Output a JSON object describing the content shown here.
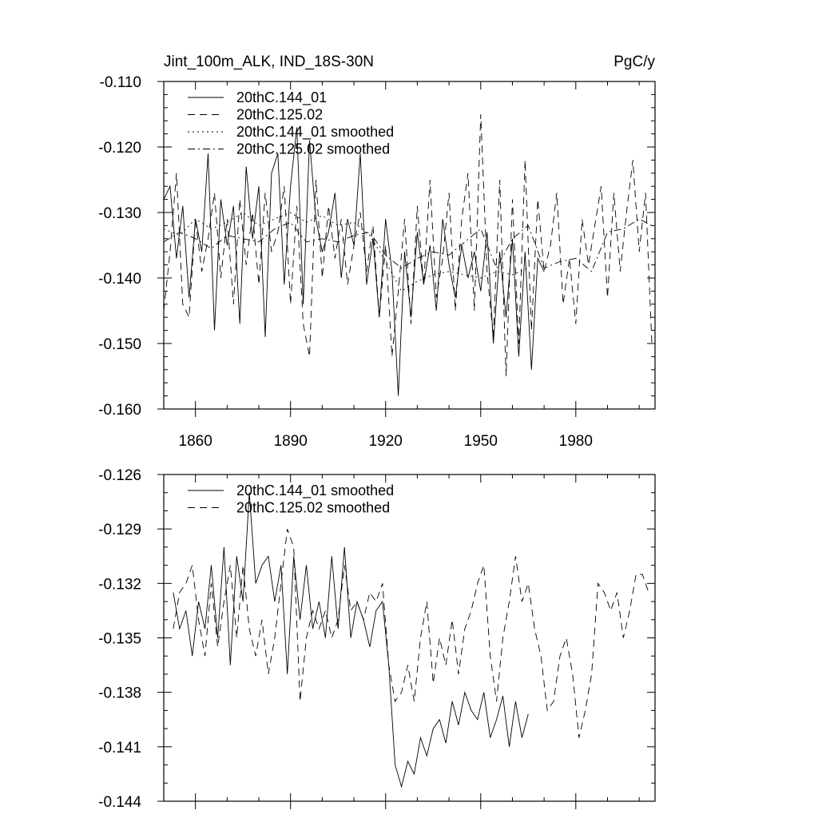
{
  "chart_data": [
    {
      "type": "line",
      "title": "Jint_100m_ALK, IND_18S-30N",
      "units": "PgC/y",
      "xlabel": "",
      "ylabel": "",
      "xlim": [
        1850,
        2005
      ],
      "ylim": [
        -0.16,
        -0.11
      ],
      "xticks": [
        1860,
        1890,
        1920,
        1950,
        1980
      ],
      "xtick_labels": [
        "1860",
        "1890",
        "1920",
        "1950",
        "1980"
      ],
      "yticks": [
        -0.11,
        -0.12,
        -0.13,
        -0.14,
        -0.15,
        -0.16
      ],
      "ytick_labels": [
        "-0.110",
        "-0.120",
        "-0.130",
        "-0.140",
        "-0.150",
        "-0.160"
      ],
      "legend_position": "top-left",
      "series": [
        {
          "name": "20thC.144_01",
          "style": "solid",
          "x": [
            1850,
            1852,
            1854,
            1856,
            1858,
            1860,
            1862,
            1864,
            1866,
            1868,
            1870,
            1872,
            1874,
            1876,
            1878,
            1880,
            1882,
            1884,
            1886,
            1888,
            1890,
            1892,
            1894,
            1896,
            1898,
            1900,
            1902,
            1904,
            1906,
            1908,
            1910,
            1912,
            1914,
            1916,
            1918,
            1920,
            1922,
            1924,
            1926,
            1928,
            1930,
            1932,
            1934,
            1936,
            1938,
            1940,
            1942,
            1944,
            1946,
            1948,
            1950,
            1952,
            1954,
            1956,
            1958,
            1960,
            1962,
            1964,
            1966,
            1968,
            1970
          ],
          "values": [
            -0.128,
            -0.126,
            -0.137,
            -0.129,
            -0.143,
            -0.131,
            -0.136,
            -0.121,
            -0.148,
            -0.128,
            -0.135,
            -0.129,
            -0.147,
            -0.123,
            -0.134,
            -0.126,
            -0.149,
            -0.124,
            -0.121,
            -0.141,
            -0.126,
            -0.117,
            -0.144,
            -0.119,
            -0.131,
            -0.136,
            -0.133,
            -0.127,
            -0.14,
            -0.131,
            -0.135,
            -0.121,
            -0.141,
            -0.134,
            -0.146,
            -0.131,
            -0.139,
            -0.158,
            -0.136,
            -0.146,
            -0.133,
            -0.141,
            -0.135,
            -0.145,
            -0.131,
            -0.138,
            -0.143,
            -0.135,
            -0.14,
            -0.136,
            -0.142,
            -0.133,
            -0.15,
            -0.136,
            -0.146,
            -0.134,
            -0.152,
            -0.136,
            -0.154,
            -0.137,
            -0.139
          ]
        },
        {
          "name": "20thC.125.02",
          "style": "dashed",
          "x": [
            1850,
            1852,
            1854,
            1856,
            1858,
            1860,
            1862,
            1864,
            1866,
            1868,
            1870,
            1872,
            1874,
            1876,
            1878,
            1880,
            1882,
            1884,
            1886,
            1888,
            1890,
            1892,
            1894,
            1896,
            1898,
            1900,
            1902,
            1904,
            1906,
            1908,
            1910,
            1912,
            1914,
            1916,
            1918,
            1920,
            1922,
            1924,
            1926,
            1928,
            1930,
            1932,
            1934,
            1936,
            1938,
            1940,
            1942,
            1944,
            1946,
            1948,
            1950,
            1952,
            1954,
            1956,
            1958,
            1960,
            1962,
            1964,
            1966,
            1968,
            1970,
            1972,
            1974,
            1976,
            1978,
            1980,
            1982,
            1984,
            1986,
            1988,
            1990,
            1992,
            1994,
            1996,
            1998,
            2000,
            2002,
            2004
          ],
          "values": [
            -0.145,
            -0.136,
            -0.124,
            -0.144,
            -0.146,
            -0.131,
            -0.139,
            -0.134,
            -0.127,
            -0.14,
            -0.131,
            -0.144,
            -0.128,
            -0.138,
            -0.13,
            -0.141,
            -0.127,
            -0.136,
            -0.133,
            -0.126,
            -0.144,
            -0.129,
            -0.147,
            -0.152,
            -0.125,
            -0.14,
            -0.129,
            -0.137,
            -0.131,
            -0.141,
            -0.135,
            -0.13,
            -0.139,
            -0.132,
            -0.146,
            -0.135,
            -0.152,
            -0.142,
            -0.131,
            -0.147,
            -0.129,
            -0.141,
            -0.125,
            -0.143,
            -0.137,
            -0.127,
            -0.145,
            -0.131,
            -0.124,
            -0.145,
            -0.115,
            -0.139,
            -0.149,
            -0.125,
            -0.155,
            -0.128,
            -0.15,
            -0.122,
            -0.148,
            -0.128,
            -0.139,
            -0.135,
            -0.127,
            -0.144,
            -0.137,
            -0.147,
            -0.131,
            -0.138,
            -0.132,
            -0.126,
            -0.143,
            -0.127,
            -0.139,
            -0.13,
            -0.122,
            -0.136,
            -0.127,
            -0.15
          ]
        },
        {
          "name": "20thC.144_01 smoothed",
          "style": "dotted",
          "x": [
            1850,
            1855,
            1860,
            1865,
            1870,
            1875,
            1880,
            1885,
            1890,
            1895,
            1900,
            1905,
            1910,
            1915,
            1920,
            1925,
            1930,
            1935,
            1940,
            1945,
            1950,
            1955,
            1960,
            1965
          ],
          "values": [
            -0.1325,
            -0.1335,
            -0.131,
            -0.1325,
            -0.1315,
            -0.13,
            -0.132,
            -0.131,
            -0.13,
            -0.1315,
            -0.1305,
            -0.132,
            -0.1315,
            -0.1335,
            -0.1375,
            -0.142,
            -0.1405,
            -0.1395,
            -0.139,
            -0.1395,
            -0.14,
            -0.139,
            -0.1395,
            -0.1385
          ]
        },
        {
          "name": "20thC.125.02 smoothed",
          "style": "dashdot",
          "x": [
            1850,
            1855,
            1860,
            1865,
            1870,
            1875,
            1880,
            1885,
            1890,
            1895,
            1900,
            1905,
            1910,
            1915,
            1920,
            1925,
            1930,
            1935,
            1940,
            1945,
            1950,
            1955,
            1960,
            1965,
            1970,
            1975,
            1980,
            1985,
            1990,
            1995,
            2000,
            2004
          ],
          "values": [
            -0.1345,
            -0.133,
            -0.134,
            -0.1355,
            -0.1335,
            -0.134,
            -0.1345,
            -0.1325,
            -0.1315,
            -0.1345,
            -0.134,
            -0.1345,
            -0.1335,
            -0.133,
            -0.1365,
            -0.1385,
            -0.137,
            -0.136,
            -0.1365,
            -0.1345,
            -0.1325,
            -0.1385,
            -0.134,
            -0.132,
            -0.1385,
            -0.1375,
            -0.137,
            -0.139,
            -0.133,
            -0.1325,
            -0.131,
            -0.132
          ]
        }
      ]
    },
    {
      "type": "line",
      "title": "",
      "xlabel": "",
      "ylabel": "",
      "xlim": [
        1850,
        2005
      ],
      "ylim": [
        -0.144,
        -0.126
      ],
      "xticks": [
        1860,
        1890,
        1920,
        1950,
        1980
      ],
      "yticks": [
        -0.126,
        -0.129,
        -0.132,
        -0.135,
        -0.138,
        -0.141,
        -0.144
      ],
      "ytick_labels": [
        "-0.126",
        "-0.129",
        "-0.132",
        "-0.135",
        "-0.138",
        "-0.141",
        "-0.144"
      ],
      "legend_position": "top-left",
      "series": [
        {
          "name": "20thC.144_01 smoothed",
          "style": "solid",
          "x": [
            1853,
            1855,
            1857,
            1859,
            1861,
            1863,
            1865,
            1867,
            1869,
            1871,
            1873,
            1875,
            1877,
            1879,
            1881,
            1883,
            1885,
            1887,
            1889,
            1891,
            1893,
            1895,
            1897,
            1899,
            1901,
            1903,
            1905,
            1907,
            1909,
            1911,
            1913,
            1915,
            1917,
            1919,
            1921,
            1923,
            1925,
            1927,
            1929,
            1931,
            1933,
            1935,
            1937,
            1939,
            1941,
            1943,
            1945,
            1947,
            1949,
            1951,
            1953,
            1955,
            1957,
            1959,
            1961,
            1963,
            1965
          ],
          "values": [
            -0.1325,
            -0.1345,
            -0.1335,
            -0.136,
            -0.133,
            -0.1345,
            -0.131,
            -0.135,
            -0.13,
            -0.1365,
            -0.1305,
            -0.133,
            -0.127,
            -0.132,
            -0.131,
            -0.1305,
            -0.133,
            -0.131,
            -0.137,
            -0.1305,
            -0.134,
            -0.131,
            -0.1345,
            -0.133,
            -0.135,
            -0.1305,
            -0.1345,
            -0.13,
            -0.135,
            -0.133,
            -0.134,
            -0.1355,
            -0.1335,
            -0.133,
            -0.1365,
            -0.142,
            -0.1432,
            -0.1418,
            -0.1425,
            -0.1405,
            -0.1415,
            -0.14,
            -0.1395,
            -0.1408,
            -0.1385,
            -0.1398,
            -0.138,
            -0.139,
            -0.1395,
            -0.138,
            -0.1405,
            -0.1395,
            -0.1382,
            -0.141,
            -0.1385,
            -0.1405,
            -0.1392
          ]
        },
        {
          "name": "20thC.125.02 smoothed",
          "style": "dashed",
          "x": [
            1853,
            1855,
            1857,
            1859,
            1861,
            1863,
            1865,
            1867,
            1869,
            1871,
            1873,
            1875,
            1877,
            1879,
            1881,
            1883,
            1885,
            1887,
            1889,
            1891,
            1893,
            1895,
            1897,
            1899,
            1901,
            1903,
            1905,
            1907,
            1909,
            1911,
            1913,
            1915,
            1917,
            1919,
            1921,
            1923,
            1925,
            1927,
            1929,
            1931,
            1933,
            1935,
            1937,
            1939,
            1941,
            1943,
            1945,
            1947,
            1949,
            1951,
            1953,
            1955,
            1957,
            1959,
            1961,
            1963,
            1965,
            1967,
            1969,
            1971,
            1973,
            1975,
            1977,
            1979,
            1981,
            1983,
            1985,
            1987,
            1989,
            1991,
            1993,
            1995,
            1997,
            1999,
            2001,
            2003
          ],
          "values": [
            -0.1345,
            -0.1325,
            -0.132,
            -0.131,
            -0.134,
            -0.136,
            -0.132,
            -0.1355,
            -0.133,
            -0.131,
            -0.135,
            -0.131,
            -0.1345,
            -0.136,
            -0.134,
            -0.137,
            -0.135,
            -0.132,
            -0.129,
            -0.13,
            -0.1385,
            -0.135,
            -0.1335,
            -0.1345,
            -0.1335,
            -0.135,
            -0.134,
            -0.131,
            -0.1335,
            -0.133,
            -0.134,
            -0.1325,
            -0.133,
            -0.132,
            -0.1365,
            -0.1385,
            -0.138,
            -0.1365,
            -0.1385,
            -0.135,
            -0.133,
            -0.1375,
            -0.135,
            -0.1365,
            -0.134,
            -0.137,
            -0.1345,
            -0.1335,
            -0.132,
            -0.131,
            -0.136,
            -0.1385,
            -0.135,
            -0.133,
            -0.1305,
            -0.133,
            -0.132,
            -0.1345,
            -0.136,
            -0.139,
            -0.1385,
            -0.136,
            -0.135,
            -0.137,
            -0.1405,
            -0.139,
            -0.137,
            -0.132,
            -0.1325,
            -0.1335,
            -0.1325,
            -0.135,
            -0.1335,
            -0.1315,
            -0.1315,
            -0.1325
          ]
        }
      ]
    }
  ]
}
